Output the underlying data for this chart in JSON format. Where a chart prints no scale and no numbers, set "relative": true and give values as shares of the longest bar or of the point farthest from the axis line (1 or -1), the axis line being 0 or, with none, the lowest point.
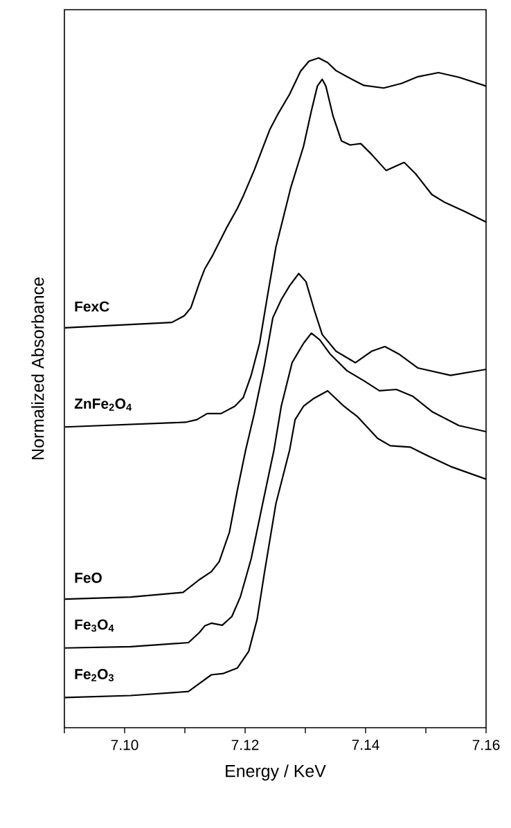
{
  "chart_data": {
    "type": "line",
    "xlabel": "Energy / KeV",
    "ylabel": "Normalized Absorbance",
    "relative": true,
    "tick_labels": "x",
    "legend": false,
    "grid": false,
    "line_style": "solid",
    "xlim": [
      7.09,
      7.16
    ],
    "xticks": [
      {
        "value": 7.09,
        "label": null
      },
      {
        "value": 7.1,
        "label": "7.10"
      },
      {
        "value": 7.11,
        "label": null
      },
      {
        "value": 7.12,
        "label": "7.12"
      },
      {
        "value": 7.13,
        "label": null
      },
      {
        "value": 7.14,
        "label": "7.14"
      },
      {
        "value": 7.15,
        "label": null
      },
      {
        "value": 7.16,
        "label": "7.16"
      }
    ],
    "series": [
      {
        "name": "FexC",
        "color": "#000000",
        "x": [
          7.0901,
          7.1078,
          7.1099,
          7.111,
          7.1124,
          7.1133,
          7.1146,
          7.1169,
          7.1187,
          7.1197,
          7.1215,
          7.1232,
          7.1241,
          7.1255,
          7.1274,
          7.1292,
          7.1306,
          7.1322,
          7.1337,
          7.1351,
          7.1369,
          7.1397,
          7.143,
          7.146,
          7.1487,
          7.1521,
          7.1555,
          7.16
        ],
        "values": [
          0.597,
          0.605,
          0.615,
          0.627,
          0.664,
          0.685,
          0.705,
          0.746,
          0.775,
          0.794,
          0.832,
          0.872,
          0.893,
          0.917,
          0.946,
          0.98,
          0.995,
          1.0,
          0.993,
          0.981,
          0.972,
          0.959,
          0.955,
          0.962,
          0.972,
          0.978,
          0.971,
          0.958
        ]
      },
      {
        "name": "ZnFe$_{2}$O$_{4}$",
        "color": "#000000",
        "x": [
          7.0901,
          7.1101,
          7.112,
          7.1137,
          7.116,
          7.1183,
          7.1197,
          7.121,
          7.1224,
          7.1237,
          7.1251,
          7.1276,
          7.1297,
          7.131,
          7.132,
          7.1328,
          7.1334,
          7.1346,
          7.136,
          7.1374,
          7.1392,
          7.141,
          7.1434,
          7.1464,
          7.1483,
          7.151,
          7.1532,
          7.1564,
          7.16
        ],
        "values": [
          0.449,
          0.456,
          0.46,
          0.469,
          0.469,
          0.48,
          0.493,
          0.526,
          0.574,
          0.644,
          0.717,
          0.807,
          0.868,
          0.921,
          0.958,
          0.968,
          0.958,
          0.913,
          0.876,
          0.87,
          0.872,
          0.856,
          0.832,
          0.844,
          0.827,
          0.796,
          0.784,
          0.771,
          0.755
        ]
      },
      {
        "name": "FeO",
        "color": "#000000",
        "x": [
          7.0901,
          7.101,
          7.1097,
          7.1124,
          7.1144,
          7.1157,
          7.1174,
          7.1187,
          7.1201,
          7.1215,
          7.1232,
          7.1246,
          7.126,
          7.1274,
          7.1289,
          7.1301,
          7.1315,
          7.1328,
          7.1351,
          7.1383,
          7.141,
          7.1432,
          7.1455,
          7.1487,
          7.1541,
          7.16
        ],
        "values": [
          0.192,
          0.195,
          0.202,
          0.221,
          0.233,
          0.248,
          0.292,
          0.354,
          0.415,
          0.468,
          0.541,
          0.612,
          0.639,
          0.66,
          0.678,
          0.666,
          0.623,
          0.587,
          0.562,
          0.545,
          0.562,
          0.569,
          0.558,
          0.537,
          0.526,
          0.535
        ]
      },
      {
        "name": "Fe$_{3}$O$_{4}$",
        "color": "#000000",
        "x": [
          7.0901,
          7.101,
          7.1106,
          7.1124,
          7.1133,
          7.1144,
          7.1162,
          7.1178,
          7.1192,
          7.121,
          7.1229,
          7.1248,
          7.126,
          7.1278,
          7.1297,
          7.131,
          7.1324,
          7.1341,
          7.1369,
          7.1397,
          7.1423,
          7.1451,
          7.1478,
          7.151,
          7.1555,
          7.16
        ],
        "values": [
          0.119,
          0.121,
          0.127,
          0.142,
          0.152,
          0.156,
          0.153,
          0.166,
          0.195,
          0.252,
          0.334,
          0.415,
          0.48,
          0.545,
          0.574,
          0.589,
          0.579,
          0.558,
          0.533,
          0.518,
          0.503,
          0.505,
          0.495,
          0.472,
          0.451,
          0.442
        ]
      },
      {
        "name": "Fe$_{2}$O$_{3}$",
        "color": "#000000",
        "x": [
          7.0901,
          7.101,
          7.1106,
          7.1124,
          7.1144,
          7.1164,
          7.1187,
          7.1206,
          7.122,
          7.1232,
          7.1251,
          7.1274,
          7.1283,
          7.1297,
          7.1313,
          7.1337,
          7.1364,
          7.1387,
          7.142,
          7.1441,
          7.1474,
          7.1501,
          7.1541,
          7.16
        ],
        "values": [
          0.045,
          0.048,
          0.054,
          0.066,
          0.079,
          0.081,
          0.089,
          0.114,
          0.162,
          0.231,
          0.334,
          0.415,
          0.46,
          0.48,
          0.491,
          0.503,
          0.48,
          0.464,
          0.432,
          0.421,
          0.419,
          0.407,
          0.39,
          0.371
        ]
      }
    ]
  }
}
